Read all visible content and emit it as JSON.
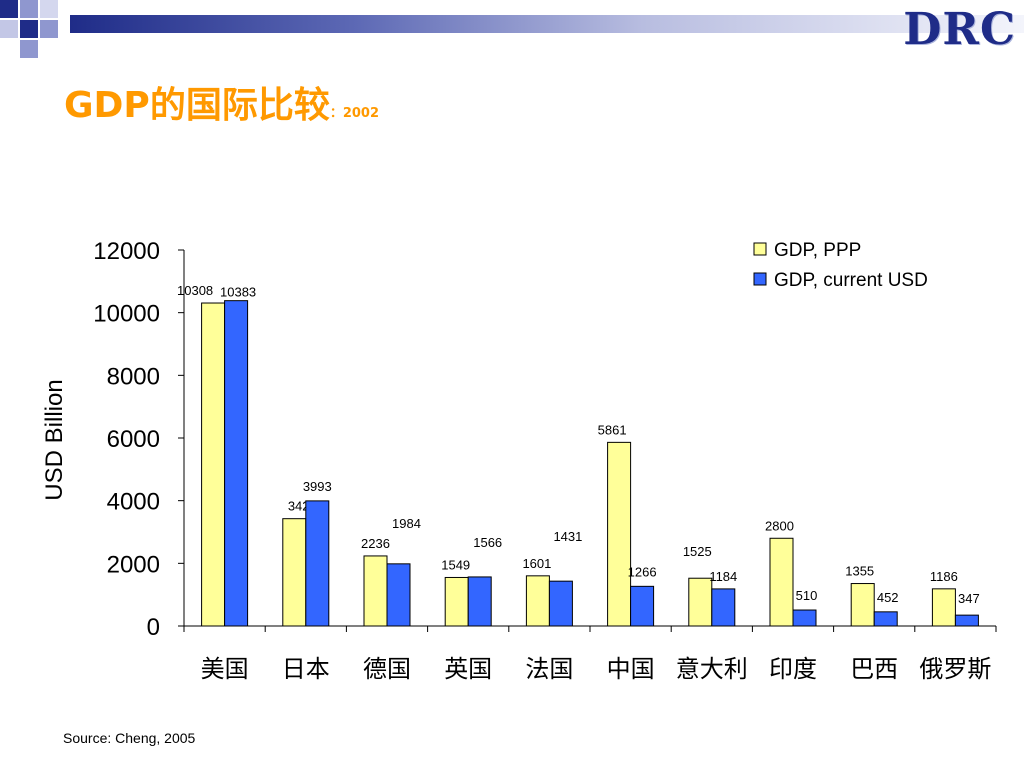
{
  "title": {
    "main": "GDP的国际比较",
    "suffix": "：2002"
  },
  "logo": "DRC",
  "source": "Source: Cheng, 2005",
  "colors": {
    "ppp": "#ffff99",
    "usd": "#3366ff",
    "title": "#ff9900",
    "logo": "#1f2c88"
  },
  "chart_data": {
    "type": "bar",
    "categories": [
      "美国",
      "日本",
      "德国",
      "英国",
      "法国",
      "中国",
      "意大利",
      "印度",
      "巴西",
      "俄罗斯"
    ],
    "series": [
      {
        "name": "GDP, PPP",
        "values": [
          10308,
          3425,
          2236,
          1549,
          1601,
          5861,
          1525,
          2800,
          1355,
          1186
        ]
      },
      {
        "name": "GDP, current USD",
        "values": [
          10383,
          3993,
          1984,
          1566,
          1431,
          1266,
          1184,
          510,
          452,
          347
        ]
      }
    ],
    "ylabel": "USD Billion",
    "xlabel": "",
    "ylim": [
      0,
      12000
    ],
    "yticks": [
      0,
      2000,
      4000,
      6000,
      8000,
      10000,
      12000
    ],
    "legend_position": "top-right",
    "grid": false
  }
}
